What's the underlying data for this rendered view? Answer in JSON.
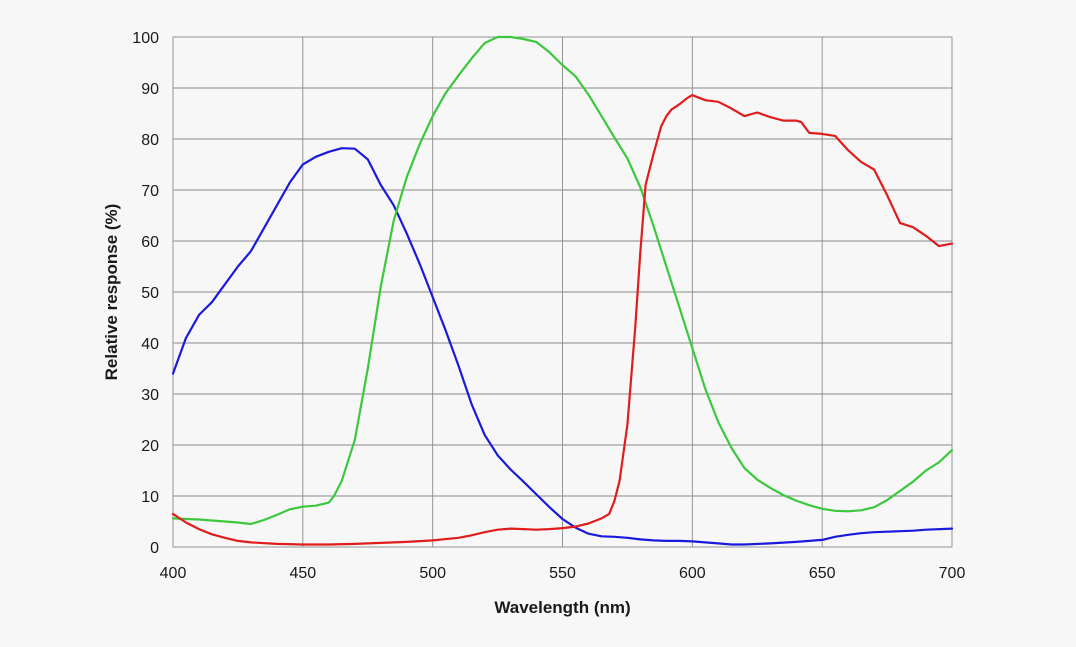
{
  "chart_data": {
    "type": "line",
    "title": "",
    "xlabel": "Wavelength (nm)",
    "ylabel": "Relative response (%)",
    "xlim": [
      400,
      700
    ],
    "ylim": [
      0,
      100
    ],
    "xticks": [
      400,
      450,
      500,
      550,
      600,
      650,
      700
    ],
    "yticks": [
      0,
      10,
      20,
      30,
      40,
      50,
      60,
      70,
      80,
      90,
      100
    ],
    "x_tick_labels": [
      "400",
      "450",
      "500",
      "550",
      "600",
      "650",
      "700"
    ],
    "y_tick_labels": [
      "0",
      "10",
      "20",
      "30",
      "40",
      "50",
      "60",
      "70",
      "80",
      "90",
      "100"
    ],
    "grid": true,
    "legend": "none",
    "series": [
      {
        "color": "#1a1adc",
        "x": [
          400,
          405,
          410,
          415,
          420,
          425,
          430,
          435,
          440,
          445,
          450,
          455,
          460,
          465,
          470,
          475,
          480,
          485,
          490,
          495,
          500,
          505,
          510,
          515,
          520,
          525,
          530,
          535,
          540,
          545,
          550,
          555,
          560,
          565,
          570,
          575,
          580,
          585,
          590,
          595,
          600,
          605,
          610,
          615,
          620,
          630,
          640,
          650,
          655,
          660,
          665,
          670,
          675,
          680,
          685,
          690,
          700
        ],
        "y": [
          34,
          41,
          45.5,
          48,
          51.5,
          55,
          58,
          62.5,
          67,
          71.5,
          75,
          76.5,
          77.5,
          78.2,
          78.1,
          76,
          71,
          67,
          61.5,
          55.5,
          49,
          42.5,
          35.5,
          28,
          22,
          18,
          15.2,
          12.8,
          10.3,
          7.8,
          5.5,
          3.8,
          2.6,
          2.1,
          2.0,
          1.8,
          1.5,
          1.3,
          1.2,
          1.2,
          1.1,
          0.9,
          0.7,
          0.5,
          0.5,
          0.7,
          1.0,
          1.4,
          2.0,
          2.4,
          2.7,
          2.9,
          3.0,
          3.1,
          3.2,
          3.4,
          3.6
        ]
      },
      {
        "color": "#3cc83c",
        "x": [
          400,
          405,
          410,
          415,
          420,
          425,
          430,
          435,
          440,
          445,
          450,
          455,
          460,
          462,
          465,
          470,
          475,
          480,
          485,
          490,
          495,
          500,
          505,
          510,
          515,
          520,
          525,
          530,
          535,
          540,
          545,
          550,
          555,
          560,
          565,
          570,
          575,
          580,
          585,
          590,
          595,
          600,
          605,
          610,
          615,
          620,
          625,
          630,
          635,
          640,
          645,
          650,
          655,
          660,
          665,
          670,
          675,
          680,
          685,
          690,
          695,
          700
        ],
        "y": [
          5.6,
          5.5,
          5.4,
          5.2,
          5.0,
          4.8,
          4.5,
          5.3,
          6.3,
          7.4,
          7.9,
          8.1,
          8.7,
          10,
          13,
          21,
          35,
          51,
          64,
          72.5,
          79,
          84.5,
          89,
          92.5,
          95.8,
          98.8,
          100,
          100,
          99.6,
          99,
          97,
          94.5,
          92.3,
          88.7,
          84.5,
          80.3,
          76.2,
          70.5,
          63,
          55,
          47,
          39,
          31,
          24.5,
          19.5,
          15.5,
          13.2,
          11.6,
          10.2,
          9.1,
          8.2,
          7.5,
          7.1,
          7.0,
          7.2,
          7.8,
          9.2,
          11,
          12.8,
          15,
          16.6,
          19
        ]
      },
      {
        "color": "#e01c1c",
        "x": [
          400,
          405,
          410,
          415,
          420,
          425,
          430,
          440,
          450,
          460,
          470,
          480,
          490,
          500,
          510,
          515,
          520,
          525,
          530,
          535,
          540,
          545,
          550,
          555,
          560,
          565,
          568,
          570,
          572,
          575,
          578,
          580,
          582,
          585,
          588,
          590,
          592,
          595,
          598,
          600,
          602,
          605,
          610,
          615,
          620,
          625,
          630,
          635,
          640,
          642,
          645,
          650,
          655,
          660,
          665,
          670,
          675,
          680,
          685,
          690,
          695,
          700
        ],
        "y": [
          6.5,
          4.8,
          3.5,
          2.5,
          1.8,
          1.2,
          0.9,
          0.6,
          0.5,
          0.5,
          0.6,
          0.8,
          1.0,
          1.3,
          1.8,
          2.3,
          2.9,
          3.4,
          3.6,
          3.5,
          3.4,
          3.5,
          3.7,
          4.0,
          4.6,
          5.6,
          6.5,
          9,
          13,
          24,
          43,
          58,
          71,
          77,
          82.5,
          84.5,
          85.8,
          86.8,
          88,
          88.6,
          88.2,
          87.6,
          87.3,
          86,
          84.5,
          85.2,
          84.3,
          83.6,
          83.6,
          83.3,
          81.2,
          81.0,
          80.6,
          77.8,
          75.5,
          74,
          69,
          63.5,
          62.7,
          61,
          59,
          59.5
        ]
      }
    ]
  }
}
